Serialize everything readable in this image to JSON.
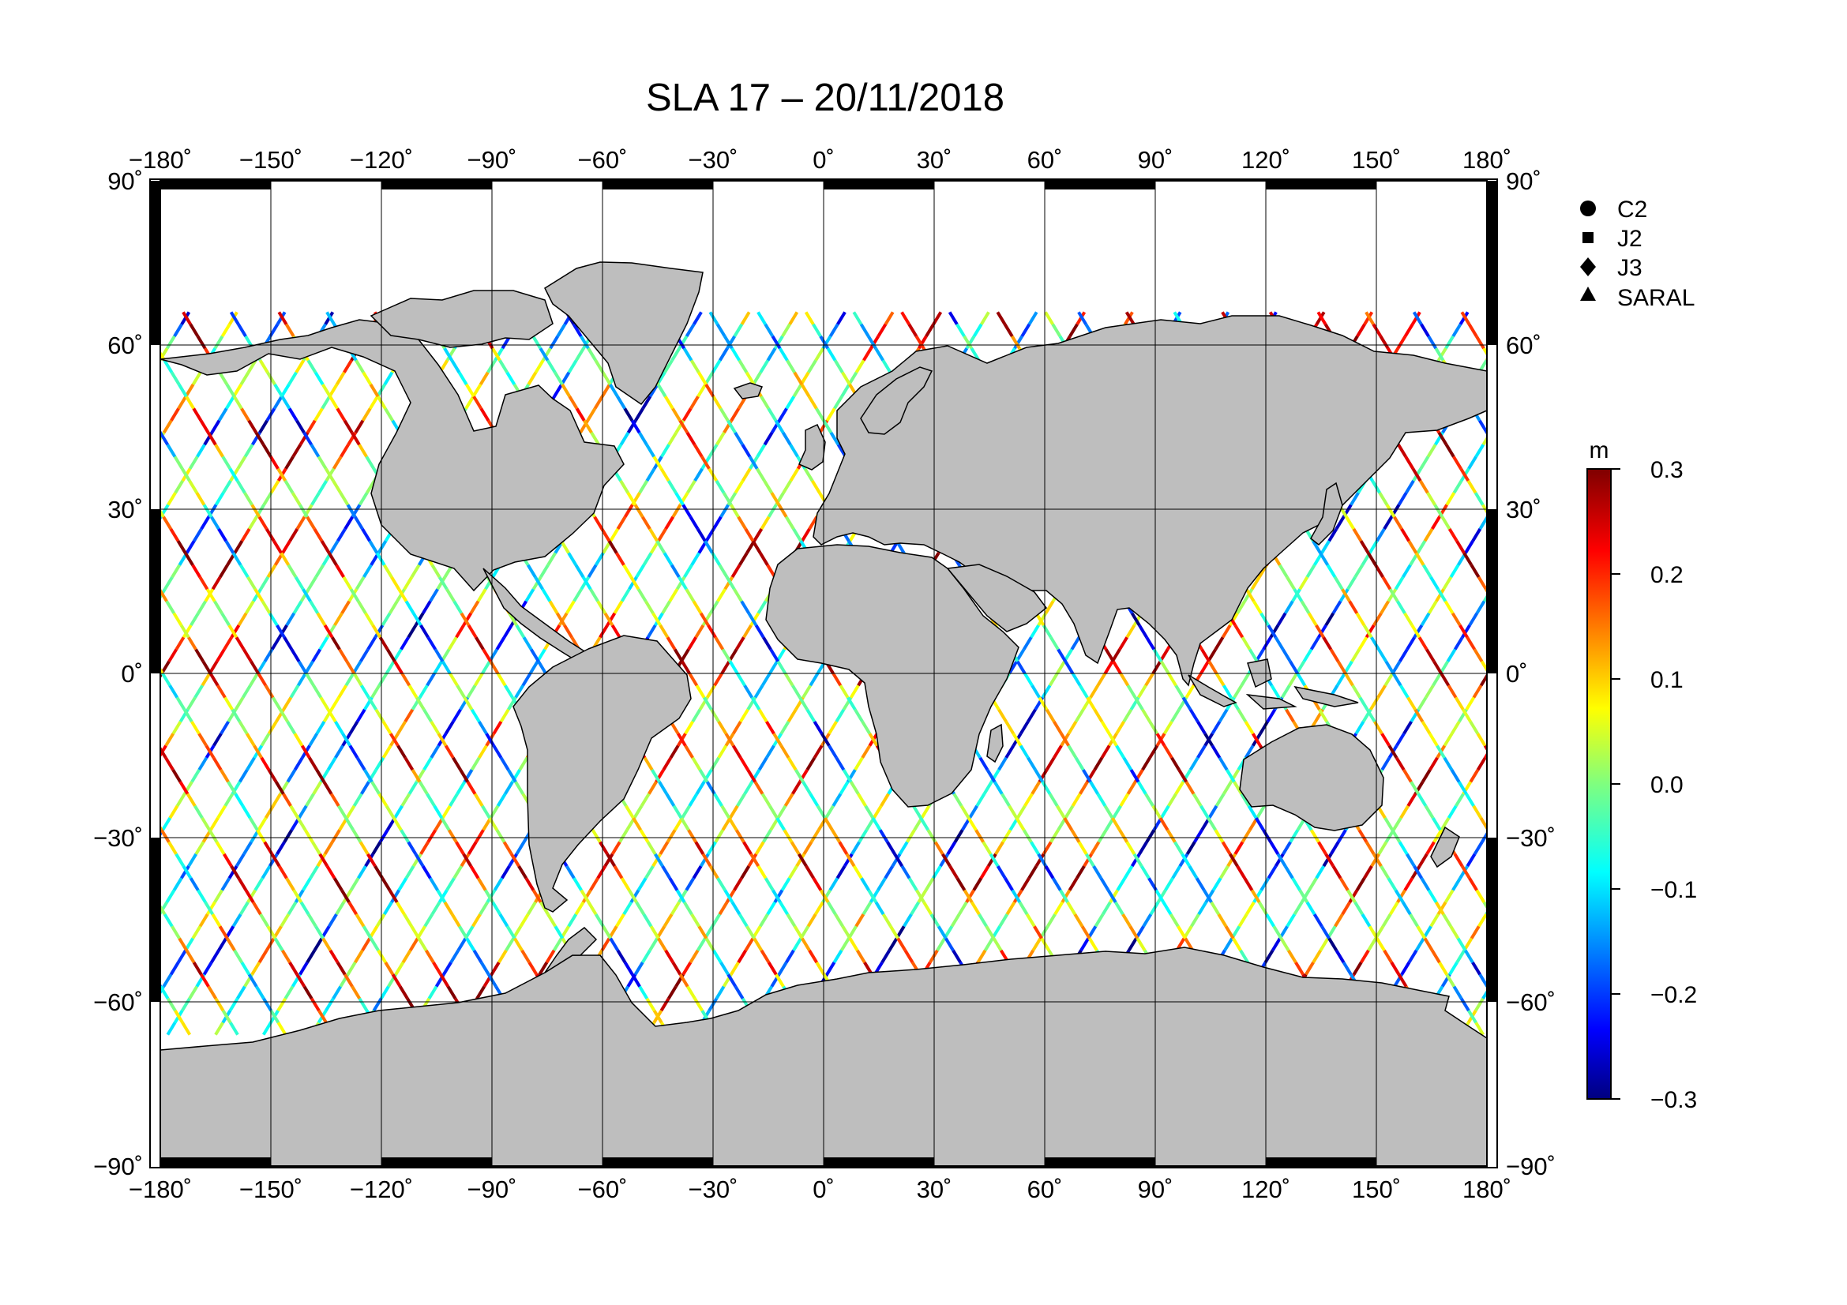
{
  "title": "SLA 17 – 20/11/2018",
  "chart_data": {
    "type": "map",
    "projection": "equirectangular",
    "lon_range": [
      -180,
      180
    ],
    "lat_range": [
      -90,
      90
    ],
    "lon_ticks": [
      -180,
      -150,
      -120,
      -90,
      -60,
      -30,
      0,
      30,
      60,
      90,
      120,
      150,
      180
    ],
    "lat_ticks": [
      90,
      60,
      30,
      0,
      -30,
      -60,
      -90
    ],
    "lon_tick_labels": [
      "−180˚",
      "−150˚",
      "−120˚",
      "−90˚",
      "−60˚",
      "−30˚",
      "0˚",
      "30˚",
      "60˚",
      "90˚",
      "120˚",
      "150˚",
      "180˚"
    ],
    "lat_tick_labels": [
      "90˚",
      "60˚",
      "30˚",
      "0˚",
      "−30˚",
      "−60˚",
      "−90˚"
    ],
    "grid": true,
    "land_color": "#bebebe",
    "ocean_color": "#ffffff",
    "legend": {
      "placement": "right",
      "entries": [
        {
          "label": "C2",
          "marker": "circle"
        },
        {
          "label": "J2",
          "marker": "square"
        },
        {
          "label": "J3",
          "marker": "diamond"
        },
        {
          "label": "SARAL",
          "marker": "triangle"
        }
      ]
    },
    "colorbar": {
      "unit": "m",
      "min": -0.3,
      "max": 0.3,
      "tick_values": [
        0.3,
        0.2,
        0.1,
        0.0,
        -0.1,
        -0.2,
        -0.3
      ],
      "tick_labels": [
        "0.3",
        "0.2",
        "0.1",
        "0.0",
        "−0.1",
        "−0.2",
        "−0.3"
      ],
      "colormap": "jet"
    },
    "tracks": {
      "lat_coverage": [
        -66,
        66
      ],
      "ascending_start_lons": [
        -178,
        -165,
        -152,
        -139,
        -126,
        -113,
        -100,
        -87,
        -74,
        -61,
        -48,
        -35,
        -22,
        -9,
        4,
        17,
        30,
        43,
        56,
        69,
        82,
        95,
        108,
        121,
        134,
        147,
        160,
        173
      ],
      "descending_start_lons": [
        -172,
        -159,
        -146,
        -133,
        -120,
        -107,
        -94,
        -81,
        -68,
        -55,
        -42,
        -29,
        -16,
        -3,
        10,
        23,
        36,
        49,
        62,
        75,
        88,
        101,
        114,
        127,
        140,
        153,
        166,
        179
      ]
    }
  }
}
